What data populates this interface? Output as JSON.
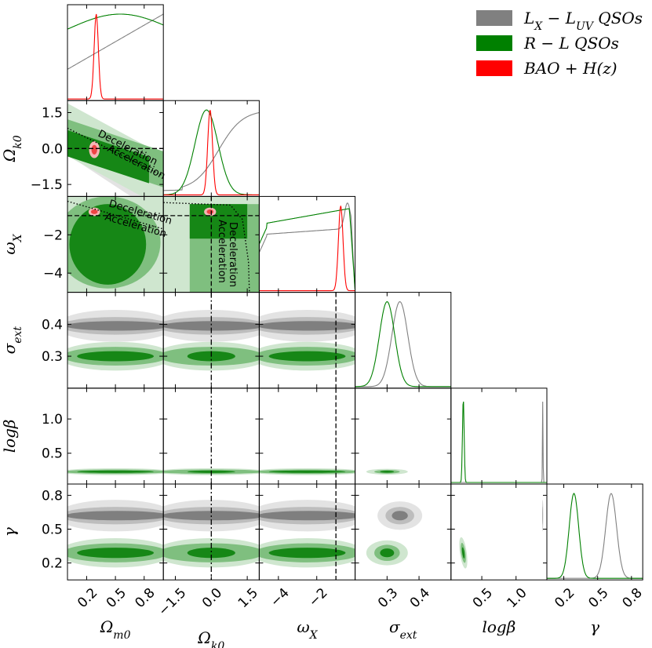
{
  "chart_data": {
    "type": "corner",
    "parameters": [
      {
        "key": "Om",
        "label": "Ω_m0",
        "range": [
          0.0,
          1.0
        ],
        "ticks": [
          0.2,
          0.5,
          0.8
        ],
        "tick_labels": [
          "0.2",
          "0.5",
          "0.8"
        ]
      },
      {
        "key": "Ok",
        "label": "Ω_k0",
        "range": [
          -2.0,
          2.0
        ],
        "ticks": [
          -1.5,
          0.0,
          1.5
        ],
        "tick_labels": [
          "−1.5",
          "0.0",
          "1.5"
        ]
      },
      {
        "key": "wX",
        "label": "ω_X",
        "range": [
          -5.0,
          0.0
        ],
        "ticks": [
          -4,
          -2
        ],
        "tick_labels": [
          "−4",
          "−2"
        ]
      },
      {
        "key": "sig",
        "label": "σ_ext",
        "range": [
          0.2,
          0.5
        ],
        "ticks": [
          0.3,
          0.4
        ],
        "tick_labels": [
          "0.3",
          "0.4"
        ]
      },
      {
        "key": "lb",
        "label": "logβ",
        "range": [
          0.05,
          1.45
        ],
        "ticks": [
          0.5,
          1.0
        ],
        "tick_labels": [
          "0.5",
          "1.0"
        ]
      },
      {
        "key": "gam",
        "label": "γ",
        "range": [
          0.05,
          0.9
        ],
        "ticks": [
          0.2,
          0.5,
          0.8
        ],
        "tick_labels": [
          "0.2",
          "0.5",
          "0.8"
        ]
      }
    ],
    "axis_labels_display": {
      "Om": {
        "base": "Ω",
        "sub": "m0"
      },
      "Ok": {
        "base": "Ω",
        "sub": "k0"
      },
      "wX": {
        "base": "ω",
        "sub": "X"
      },
      "sig": {
        "base": "σ",
        "sub": "ext"
      },
      "lb": {
        "base": "logβ",
        "sub": ""
      },
      "gam": {
        "base": "γ",
        "sub": ""
      }
    },
    "legend": {
      "placement": "top-right",
      "entries": [
        {
          "label": "L_X − L_UV QSOs",
          "color": "#808080"
        },
        {
          "label": "R − L QSOs",
          "color": "#008000"
        },
        {
          "label": "BAO + H(z)",
          "color": "#ff0000"
        }
      ]
    },
    "colors": {
      "grey": [
        "#e3e3e3",
        "#bdbdbd",
        "#7f7f7f"
      ],
      "green": [
        "#cfe6cf",
        "#7fbf7f",
        "#168716"
      ],
      "red": [
        "#f4b5b5",
        "#ee4444"
      ]
    },
    "reference_lines": {
      "Ok": 0.0,
      "wX": -1.0
    },
    "annotations": {
      "deceleration": "Deceleration",
      "acceleration": "Acceleration"
    },
    "marginals": {
      "Om": [
        {
          "dataset": "LX-LUV QSOs",
          "color": "#808080",
          "type": "linear",
          "ys": [
            0.35,
            1.0
          ]
        },
        {
          "dataset": "R-L QSOs",
          "color": "#008000",
          "type": "broad",
          "mu": 0.55,
          "sigma": 0.55
        },
        {
          "dataset": "BAO+H(z)",
          "color": "#ff0000",
          "type": "gauss",
          "mu": 0.3,
          "sigma": 0.022
        }
      ],
      "Ok": [
        {
          "dataset": "LX-LUV QSOs",
          "color": "#808080",
          "type": "rise",
          "mu": 0.3,
          "sigma": 0.5
        },
        {
          "dataset": "R-L QSOs",
          "color": "#008000",
          "type": "gauss",
          "mu": -0.2,
          "sigma": 0.48
        },
        {
          "dataset": "BAO+H(z)",
          "color": "#ff0000",
          "type": "gauss",
          "mu": -0.05,
          "sigma": 0.1
        }
      ],
      "wX": [
        {
          "dataset": "LX-LUV QSOs",
          "color": "#808080",
          "type": "plateau_peak",
          "peak": -0.4
        },
        {
          "dataset": "R-L QSOs",
          "color": "#008000",
          "type": "plateau",
          "edge": -0.3
        },
        {
          "dataset": "BAO+H(z)",
          "color": "#ff0000",
          "type": "gauss",
          "mu": -0.75,
          "sigma": 0.12
        }
      ],
      "sig": [
        {
          "dataset": "LX-LUV QSOs",
          "color": "#808080",
          "type": "gauss",
          "mu": 0.34,
          "sigma": 0.025
        },
        {
          "dataset": "R-L QSOs",
          "color": "#008000",
          "type": "gauss",
          "mu": 0.3,
          "sigma": 0.024
        }
      ],
      "lb": [
        {
          "dataset": "LX-LUV QSOs",
          "color": "#808080",
          "type": "gauss",
          "mu": 1.39,
          "sigma": 0.004
        },
        {
          "dataset": "R-L QSOs",
          "color": "#008000",
          "type": "gauss",
          "mu": 0.23,
          "sigma": 0.012
        }
      ],
      "gam": [
        {
          "dataset": "LX-LUV QSOs",
          "color": "#808080",
          "type": "gauss",
          "mu": 0.62,
          "sigma": 0.048
        },
        {
          "dataset": "R-L QSOs",
          "color": "#008000",
          "type": "gauss",
          "mu": 0.29,
          "sigma": 0.042
        }
      ]
    }
  }
}
